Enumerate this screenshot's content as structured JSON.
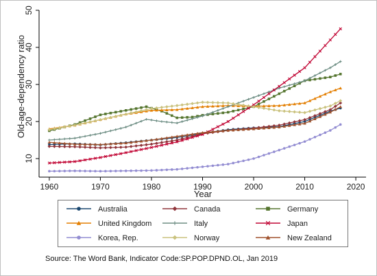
{
  "chart_data": {
    "type": "line",
    "xlabel": "Year",
    "ylabel": "Old-age-dependency ratio",
    "xlim": [
      1958,
      2022
    ],
    "ylim": [
      5,
      50
    ],
    "x_ticks": [
      1960,
      1970,
      1980,
      1990,
      2000,
      2010,
      2020
    ],
    "y_ticks": [
      10,
      20,
      30,
      40,
      50
    ],
    "grid": false,
    "legend_position": "bottom",
    "source_text": "Source: The Word Bank, Indicator Code:SP.POP.DPND.OL, Jan 2019",
    "series": [
      {
        "name": "Australia",
        "color": "#1a476f",
        "marker": "circle",
        "points": [
          [
            1960,
            13.8
          ],
          [
            1965,
            14.0
          ],
          [
            1970,
            13.7
          ],
          [
            1975,
            14.3
          ],
          [
            1980,
            15.0
          ],
          [
            1985,
            15.7
          ],
          [
            1990,
            16.8
          ],
          [
            1995,
            17.8
          ],
          [
            2000,
            18.3
          ],
          [
            2005,
            18.6
          ],
          [
            2010,
            20.0
          ],
          [
            2015,
            22.8
          ],
          [
            2017,
            23.6
          ]
        ]
      },
      {
        "name": "Canada",
        "color": "#90353b",
        "marker": "diamond",
        "points": [
          [
            1960,
            13.3
          ],
          [
            1965,
            13.2
          ],
          [
            1970,
            12.9
          ],
          [
            1975,
            13.1
          ],
          [
            1980,
            13.9
          ],
          [
            1985,
            15.0
          ],
          [
            1990,
            16.7
          ],
          [
            1995,
            17.6
          ],
          [
            2000,
            18.2
          ],
          [
            2005,
            19.0
          ],
          [
            2010,
            20.5
          ],
          [
            2015,
            23.2
          ],
          [
            2017,
            25.0
          ]
        ]
      },
      {
        "name": "Germany",
        "color": "#55752f",
        "marker": "square",
        "points": [
          [
            1960,
            17.5
          ],
          [
            1965,
            19.2
          ],
          [
            1970,
            21.8
          ],
          [
            1975,
            23.0
          ],
          [
            1979,
            24.0
          ],
          [
            1982,
            22.8
          ],
          [
            1985,
            21.0
          ],
          [
            1988,
            21.2
          ],
          [
            1990,
            21.7
          ],
          [
            1995,
            22.5
          ],
          [
            2000,
            24.0
          ],
          [
            2005,
            27.5
          ],
          [
            2010,
            31.0
          ],
          [
            2015,
            32.0
          ],
          [
            2017,
            32.8
          ]
        ]
      },
      {
        "name": "United Kingdom",
        "color": "#e37e00",
        "marker": "triangle",
        "points": [
          [
            1960,
            18.0
          ],
          [
            1965,
            19.0
          ],
          [
            1970,
            20.5
          ],
          [
            1975,
            22.0
          ],
          [
            1980,
            23.0
          ],
          [
            1985,
            23.2
          ],
          [
            1990,
            24.0
          ],
          [
            1995,
            24.3
          ],
          [
            2000,
            24.1
          ],
          [
            2005,
            24.3
          ],
          [
            2010,
            25.0
          ],
          [
            2015,
            28.0
          ],
          [
            2017,
            29.0
          ]
        ]
      },
      {
        "name": "Italy",
        "color": "#6e8e84",
        "marker": "plus",
        "points": [
          [
            1960,
            15.0
          ],
          [
            1965,
            15.5
          ],
          [
            1970,
            16.8
          ],
          [
            1975,
            18.5
          ],
          [
            1979,
            20.6
          ],
          [
            1982,
            20.0
          ],
          [
            1985,
            19.6
          ],
          [
            1990,
            21.5
          ],
          [
            1995,
            24.0
          ],
          [
            2000,
            26.5
          ],
          [
            2005,
            29.0
          ],
          [
            2010,
            31.0
          ],
          [
            2015,
            34.5
          ],
          [
            2017,
            36.2
          ]
        ]
      },
      {
        "name": "Japan",
        "color": "#c10534",
        "marker": "x",
        "points": [
          [
            1960,
            8.8
          ],
          [
            1965,
            9.2
          ],
          [
            1970,
            10.3
          ],
          [
            1975,
            11.6
          ],
          [
            1980,
            13.0
          ],
          [
            1985,
            14.5
          ],
          [
            1990,
            16.5
          ],
          [
            1995,
            20.0
          ],
          [
            2000,
            24.5
          ],
          [
            2005,
            29.5
          ],
          [
            2010,
            34.5
          ],
          [
            2015,
            42.0
          ],
          [
            2017,
            45.0
          ]
        ]
      },
      {
        "name": "Korea, Rep.",
        "color": "#938dd2",
        "marker": "circle",
        "points": [
          [
            1960,
            6.6
          ],
          [
            1965,
            6.7
          ],
          [
            1970,
            6.6
          ],
          [
            1975,
            6.7
          ],
          [
            1980,
            6.8
          ],
          [
            1985,
            7.1
          ],
          [
            1990,
            7.8
          ],
          [
            1995,
            8.5
          ],
          [
            2000,
            10.0
          ],
          [
            2005,
            12.3
          ],
          [
            2010,
            14.6
          ],
          [
            2015,
            17.6
          ],
          [
            2017,
            19.2
          ]
        ]
      },
      {
        "name": "Norway",
        "color": "#cac27e",
        "marker": "diamond",
        "points": [
          [
            1960,
            17.8
          ],
          [
            1965,
            19.0
          ],
          [
            1970,
            20.5
          ],
          [
            1975,
            22.0
          ],
          [
            1980,
            23.5
          ],
          [
            1985,
            24.3
          ],
          [
            1990,
            25.2
          ],
          [
            1995,
            25.0
          ],
          [
            2000,
            24.0
          ],
          [
            2005,
            22.9
          ],
          [
            2010,
            22.4
          ],
          [
            2015,
            24.2
          ],
          [
            2017,
            25.6
          ]
        ]
      },
      {
        "name": "New Zealand",
        "color": "#a0522d",
        "marker": "triangle",
        "points": [
          [
            1960,
            14.4
          ],
          [
            1965,
            13.9
          ],
          [
            1970,
            13.8
          ],
          [
            1975,
            14.2
          ],
          [
            1980,
            15.0
          ],
          [
            1985,
            16.0
          ],
          [
            1990,
            17.0
          ],
          [
            1995,
            17.6
          ],
          [
            2000,
            18.0
          ],
          [
            2005,
            18.5
          ],
          [
            2010,
            19.5
          ],
          [
            2015,
            22.5
          ],
          [
            2017,
            24.0
          ]
        ]
      }
    ]
  }
}
